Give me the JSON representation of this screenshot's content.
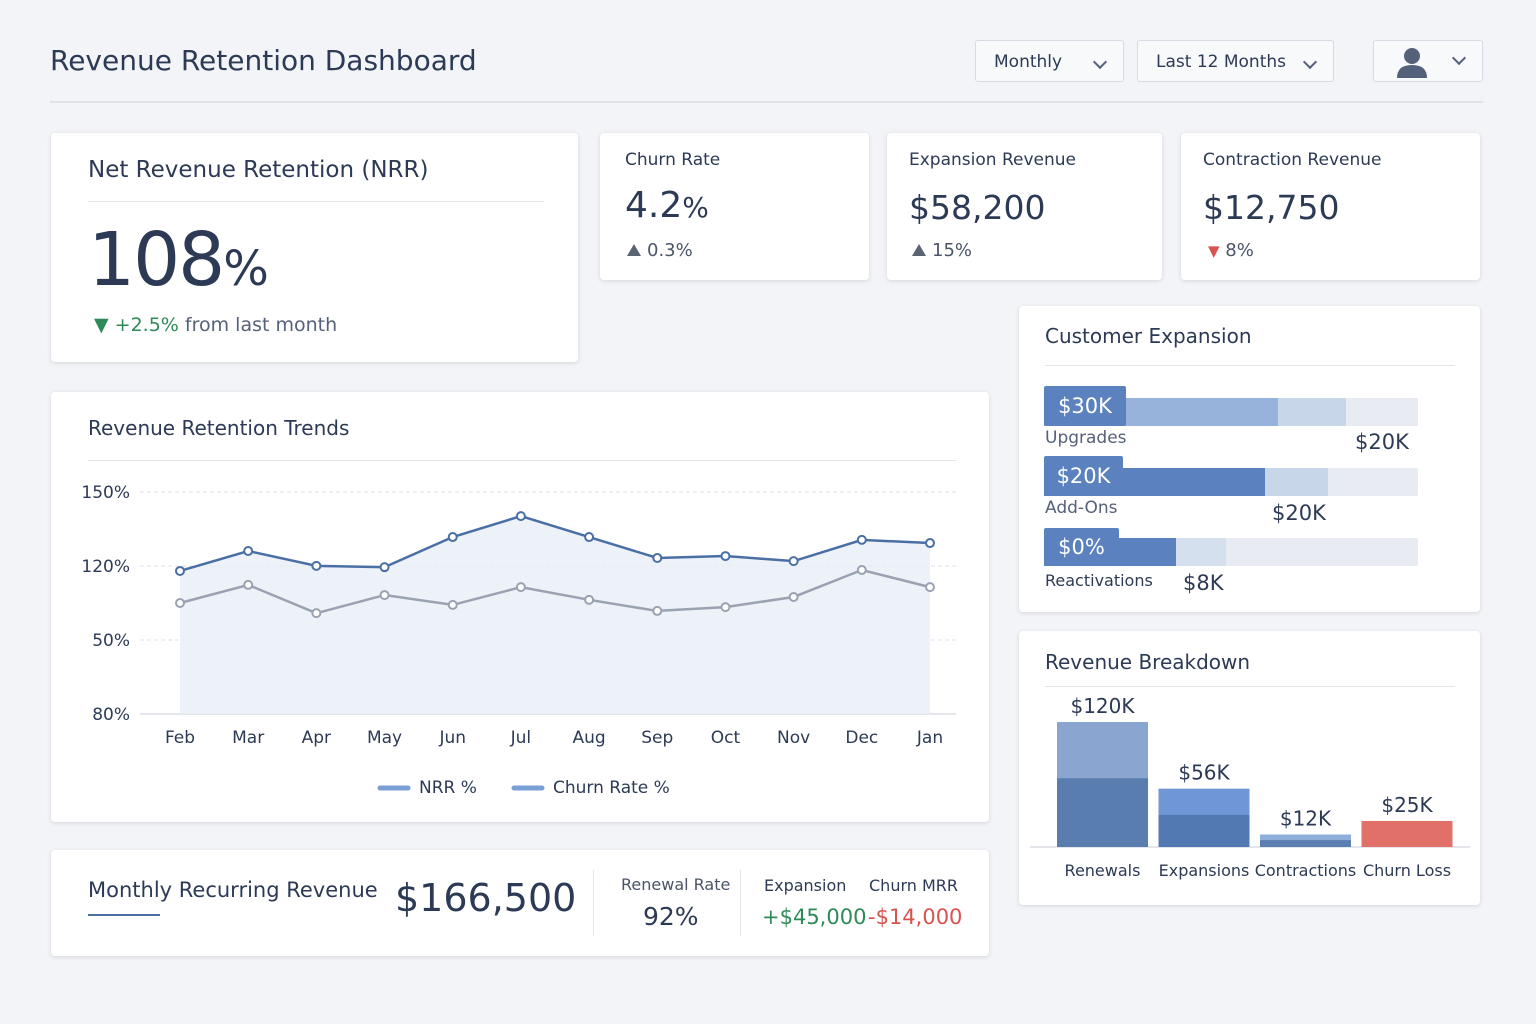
{
  "header": {
    "title": "Revenue Retention Dashboard",
    "filters": [
      "Monthly",
      "Last 12 Months"
    ]
  },
  "nrr": {
    "title": "Net Revenue Retention (NRR)",
    "value": "108",
    "unit": "%",
    "change": "+2.5%",
    "change_note": "from last month"
  },
  "kpis": [
    {
      "title": "Churn Rate",
      "value": "4.2",
      "unit": "%",
      "change": "0.3%"
    },
    {
      "title": "Expansion Revenue",
      "value": "$58,200",
      "change": "15%"
    },
    {
      "title": "Contraction Revenue",
      "value": "$12,750",
      "change": "8%"
    }
  ],
  "customer_expansion": {
    "title": "Customer Expansion",
    "rows": [
      {
        "badge": "$30K",
        "label": "Upgrades",
        "value": "$20K"
      },
      {
        "badge": "$20K",
        "label": "Add-Ons",
        "value": "$20K"
      },
      {
        "badge": "$0%",
        "label": "Reactivations",
        "value": "$8K"
      }
    ]
  },
  "mrr": {
    "title": "Monthly Recurring Revenue",
    "value": "$166,500",
    "stats": [
      {
        "label": "Renewal Rate",
        "value": "92%"
      },
      {
        "label": "Expansion",
        "value": "+$45,000"
      },
      {
        "label": "Churn MRR",
        "value": "-$14,000"
      }
    ]
  },
  "chart_data": [
    {
      "type": "line",
      "title": "Revenue Retention Trends",
      "categories": [
        "Feb",
        "Mar",
        "Apr",
        "May",
        "Jun",
        "Jul",
        "Aug",
        "Sep",
        "Oct",
        "Nov",
        "Dec",
        "Jan"
      ],
      "y_axis_labels": [
        "150%",
        "120%",
        "50%",
        "80%"
      ],
      "ylim": [
        80,
        150
      ],
      "series": [
        {
          "name": "NRR %",
          "color": "#4a6fa5",
          "values": [
            125.1,
            131.4,
            126.7,
            126.3,
            135.8,
            142.4,
            135.8,
            129.2,
            129.8,
            128.2,
            134.9,
            133.9
          ]
        },
        {
          "name": "Churn Rate %",
          "color": "#9aa2b2",
          "values": [
            115.0,
            120.7,
            111.8,
            117.5,
            114.4,
            120.0,
            116.0,
            112.5,
            113.7,
            116.9,
            125.4,
            120.0
          ]
        }
      ]
    },
    {
      "type": "bar",
      "title": "Revenue Breakdown",
      "categories": [
        "Renewals",
        "Expansions",
        "Contractions",
        "Churn Loss"
      ],
      "values": [
        120000,
        56000,
        12000,
        25000
      ],
      "value_labels": [
        "$120K",
        "$56K",
        "$12K",
        "$25K"
      ],
      "colors": [
        "#8aa6d0",
        "#6f96d6",
        "#8eaedc",
        "#e07068"
      ],
      "ylim": [
        0,
        120000
      ]
    }
  ]
}
